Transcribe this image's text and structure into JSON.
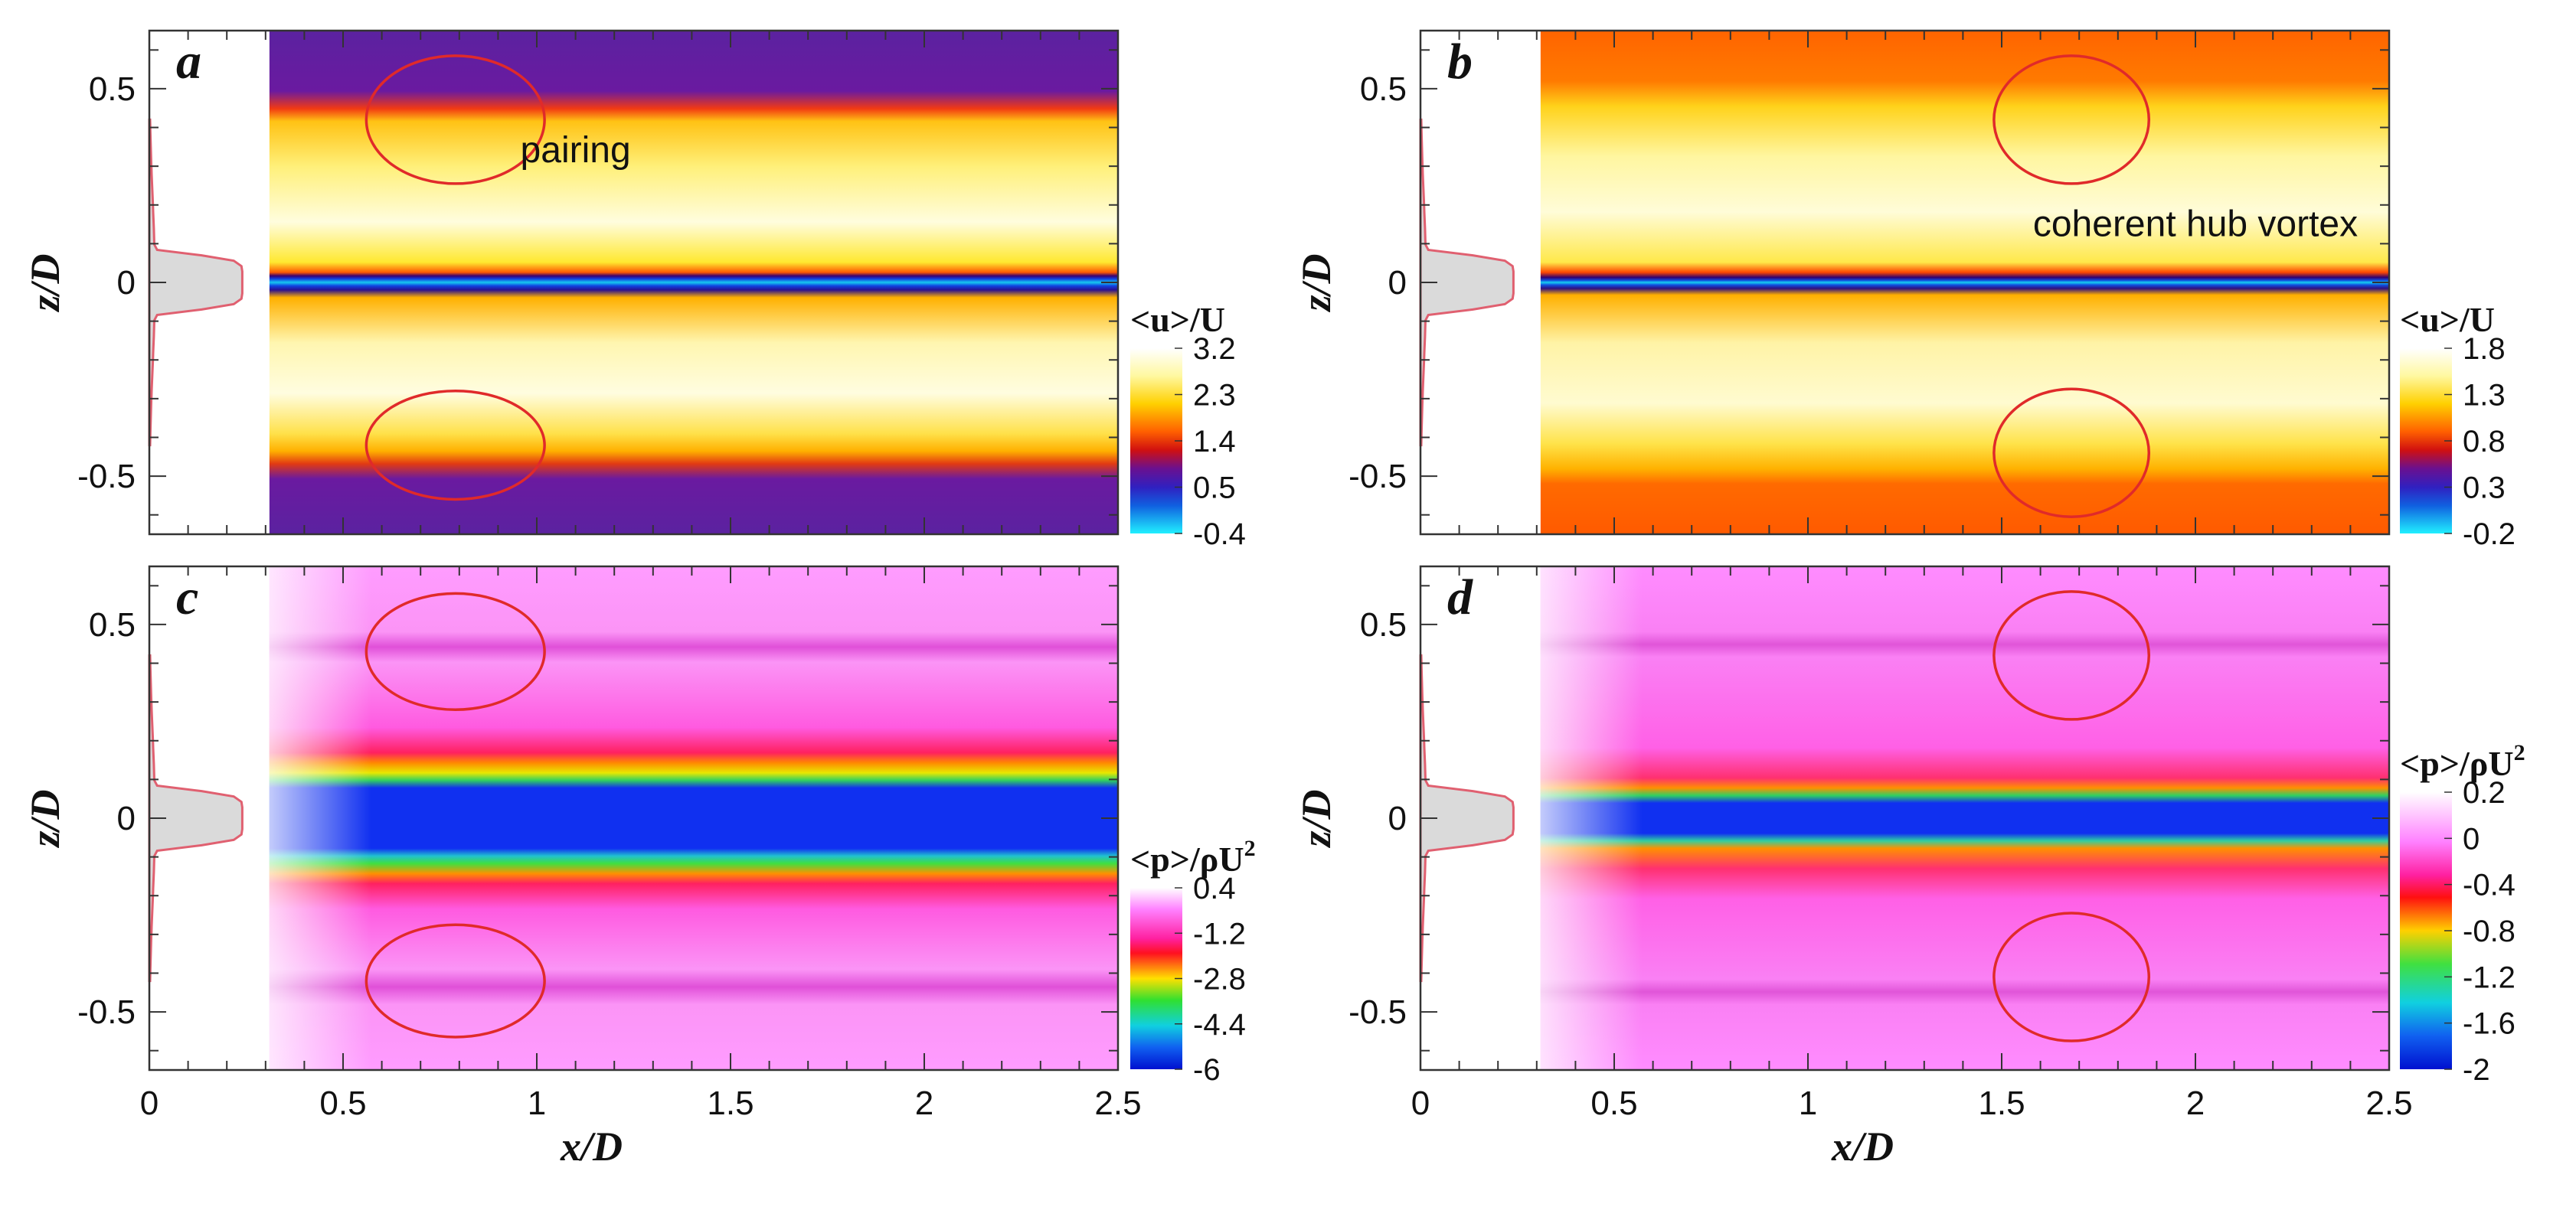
{
  "chart_data": [
    {
      "panel": "a",
      "type": "heatmap",
      "variable": "mean streamwise velocity",
      "xlabel": "",
      "ylabel": "z/D",
      "xlim": [
        0,
        2.5
      ],
      "ylim": [
        -0.65,
        0.65
      ],
      "x_ticks": [],
      "y_ticks": [
        "0.5",
        "0",
        "-0.5"
      ],
      "colorbar": {
        "title": "<u>/U",
        "ticks": [
          "3.2",
          "2.3",
          "1.4",
          "0.5",
          "-0.4"
        ],
        "min": -0.4,
        "max": 3.2
      },
      "annotations": [
        {
          "text": "pairing",
          "x": 1.1,
          "z": 0.31
        }
      ],
      "ellipses": [
        {
          "cx": 0.79,
          "cz": 0.42,
          "rx": 0.23,
          "rz": 0.165
        },
        {
          "cx": 0.79,
          "cz": -0.42,
          "rx": 0.23,
          "rz": 0.14
        }
      ]
    },
    {
      "panel": "b",
      "type": "heatmap",
      "variable": "mean streamwise velocity",
      "xlabel": "",
      "ylabel": "z/D",
      "xlim": [
        0,
        2.5
      ],
      "ylim": [
        -0.65,
        0.65
      ],
      "x_ticks": [],
      "y_ticks": [
        "0.5",
        "0",
        "-0.5"
      ],
      "colorbar": {
        "title": "<u>/U",
        "ticks": [
          "1.8",
          "1.3",
          "0.8",
          "0.3",
          "-0.2"
        ],
        "min": -0.2,
        "max": 1.8
      },
      "annotations": [
        {
          "text": "coherent hub vortex",
          "x": 2.0,
          "z": 0.12
        }
      ],
      "ellipses": [
        {
          "cx": 1.68,
          "cz": 0.42,
          "rx": 0.2,
          "rz": 0.165
        },
        {
          "cx": 1.68,
          "cz": -0.44,
          "rx": 0.2,
          "rz": 0.165
        }
      ]
    },
    {
      "panel": "c",
      "type": "heatmap",
      "variable": "mean pressure",
      "xlabel": "x/D",
      "ylabel": "z/D",
      "xlim": [
        0,
        2.5
      ],
      "ylim": [
        -0.65,
        0.65
      ],
      "x_ticks": [
        "0",
        "0.5",
        "1",
        "1.5",
        "2",
        "2.5"
      ],
      "y_ticks": [
        "0.5",
        "0",
        "-0.5"
      ],
      "colorbar": {
        "title": "<p>/ρU",
        "title_sup": "2",
        "ticks": [
          "0.4",
          "-1.2",
          "-2.8",
          "-4.4",
          "-6"
        ],
        "min": -6,
        "max": 0.4
      },
      "annotations": [],
      "ellipses": [
        {
          "cx": 0.79,
          "cz": 0.43,
          "rx": 0.23,
          "rz": 0.15
        },
        {
          "cx": 0.79,
          "cz": -0.42,
          "rx": 0.23,
          "rz": 0.145
        }
      ]
    },
    {
      "panel": "d",
      "type": "heatmap",
      "variable": "mean pressure",
      "xlabel": "x/D",
      "ylabel": "z/D",
      "xlim": [
        0,
        2.5
      ],
      "ylim": [
        -0.65,
        0.65
      ],
      "x_ticks": [
        "0",
        "0.5",
        "1",
        "1.5",
        "2",
        "2.5"
      ],
      "y_ticks": [
        "0.5",
        "0",
        "-0.5"
      ],
      "colorbar": {
        "title": "<p>/ρU",
        "title_sup": "2",
        "ticks": [
          "0.2",
          "0",
          "-0.4",
          "-0.8",
          "-1.2",
          "-1.6",
          "-2"
        ],
        "min": -2,
        "max": 0.2
      },
      "annotations": [],
      "ellipses": [
        {
          "cx": 1.68,
          "cz": 0.42,
          "rx": 0.2,
          "rz": 0.165
        },
        {
          "cx": 1.68,
          "cz": -0.41,
          "rx": 0.2,
          "rz": 0.165
        }
      ]
    }
  ],
  "colors": {
    "ellipse": "#e02a2a",
    "profile_fill": "#dadada",
    "profile_line": "#e06070",
    "axis": "#333333"
  }
}
